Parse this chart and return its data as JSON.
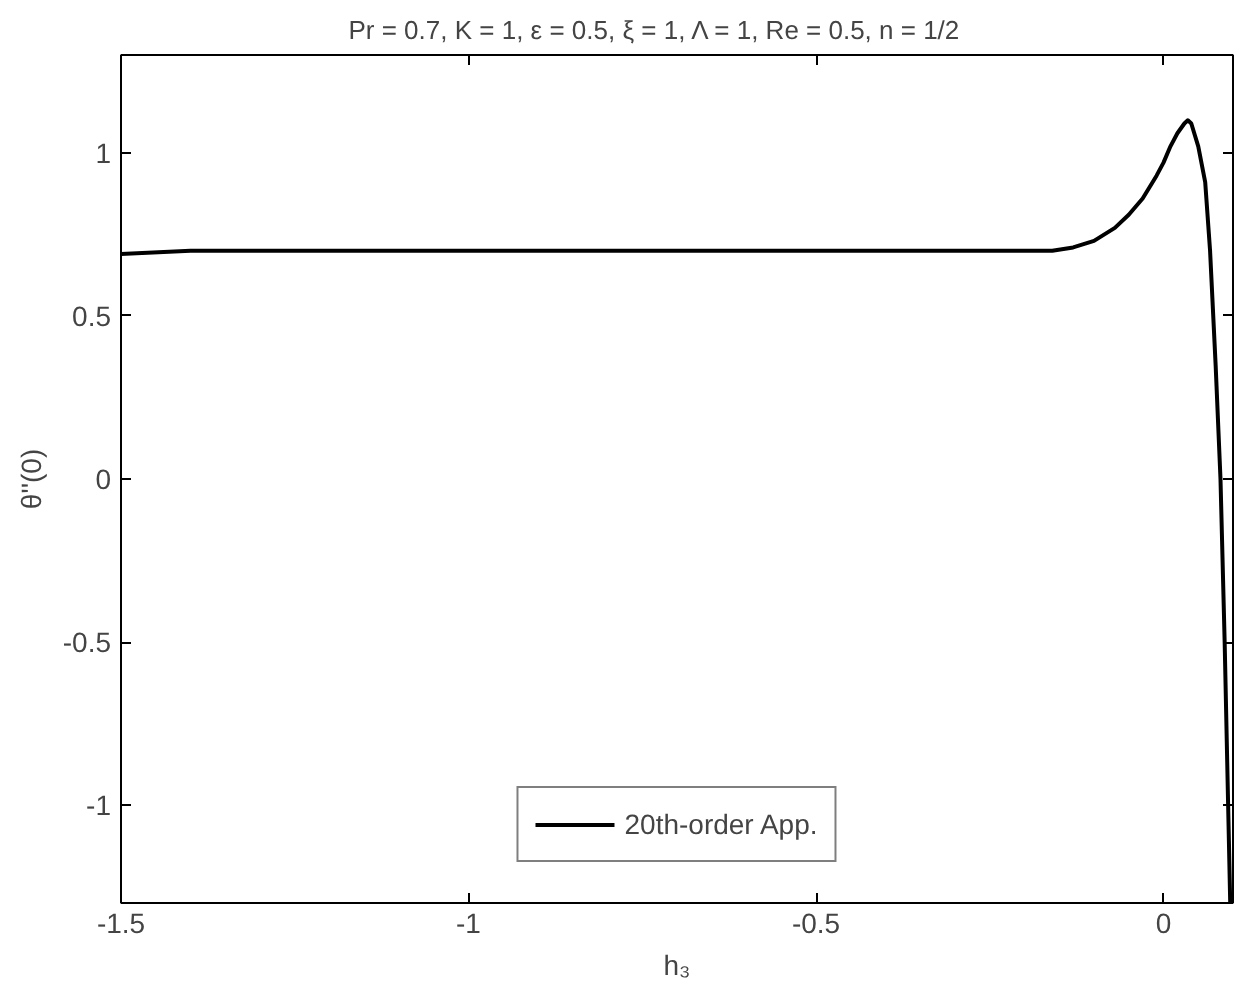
{
  "chart_data": {
    "type": "line",
    "title": "Pr = 0.7,  K = 1,  ε = 0.5,  ξ = 1,  Λ = 1,  Re = 0.5,  n = 1/2",
    "xlabel": "h₃",
    "ylabel": "θ''(0)",
    "series": [
      {
        "name": "20th-order App.",
        "color": "#000000",
        "x": [
          -1.5,
          -1.4,
          -1.2,
          -1.0,
          -0.8,
          -0.6,
          -0.4,
          -0.3,
          -0.2,
          -0.16,
          -0.13,
          -0.1,
          -0.07,
          -0.05,
          -0.03,
          -0.01,
          0.0,
          0.01,
          0.02,
          0.03,
          0.035,
          0.04,
          0.05,
          0.06,
          0.067,
          0.075,
          0.082,
          0.088,
          0.093,
          0.096
        ],
        "values": [
          0.69,
          0.7,
          0.7,
          0.7,
          0.7,
          0.7,
          0.7,
          0.7,
          0.7,
          0.7,
          0.71,
          0.73,
          0.77,
          0.81,
          0.86,
          0.93,
          0.97,
          1.02,
          1.06,
          1.09,
          1.1,
          1.09,
          1.02,
          0.91,
          0.7,
          0.35,
          0.0,
          -0.5,
          -1.0,
          -1.3
        ]
      }
    ],
    "xlim": [
      -1.5,
      0.1
    ],
    "ylim": [
      -1.3,
      1.3
    ],
    "xticks": [
      -1.5,
      -1,
      -0.5,
      0
    ],
    "yticks": [
      -1,
      -0.5,
      0,
      0.5,
      1
    ],
    "grid": false,
    "legend": "bottom",
    "line_style": "solid",
    "marker": "none"
  }
}
